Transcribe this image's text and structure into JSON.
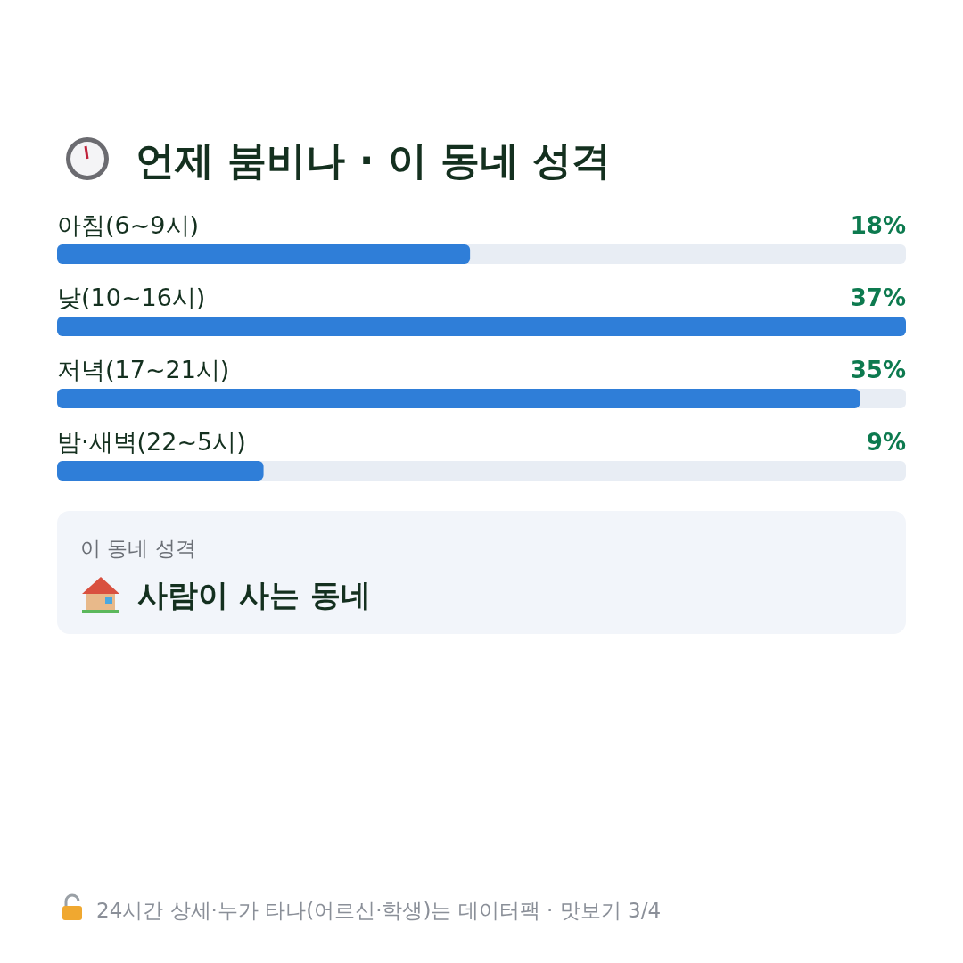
{
  "chart_data": {
    "type": "bar",
    "orientation": "horizontal",
    "title": "언제 붐비나 · 이 동네 성격",
    "categories": [
      "아침(6~9시)",
      "낮(10~16시)",
      "저녁(17~21시)",
      "밤·새벽(22~5시)"
    ],
    "values": [
      18,
      37,
      35,
      9
    ],
    "value_labels": [
      "18%",
      "37%",
      "35%",
      "9%"
    ],
    "color": "#2f7ed8",
    "annotations": [
      "이 동네 성격",
      "사람이 사는 동네",
      "24시간 상세·누가 타나(어르신·학생)는 데이터팩 · 맛보기 3/4"
    ]
  }
}
